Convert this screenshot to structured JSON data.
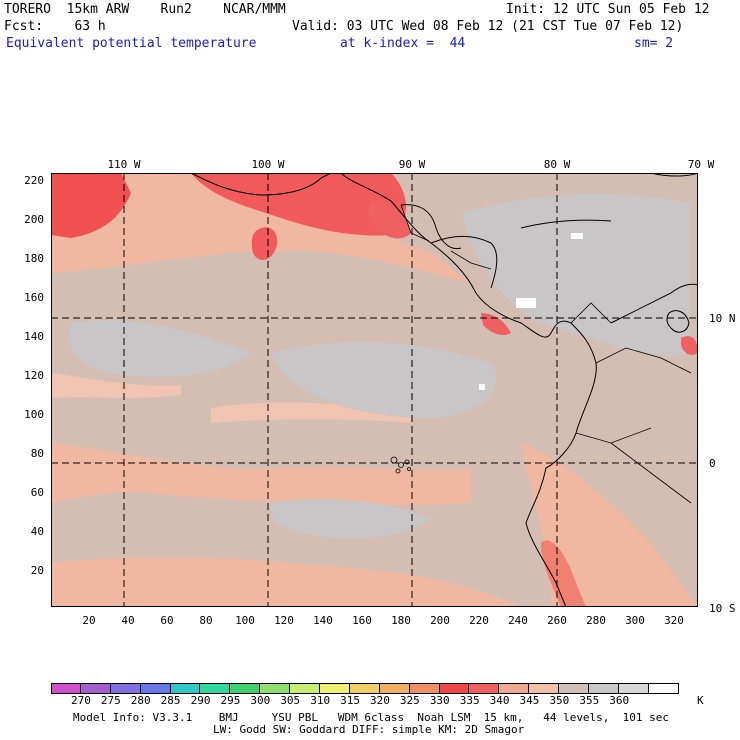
{
  "header": {
    "model": "TORERO  15km ARW    Run2    NCAR/MMM",
    "init": "Init: 12 UTC Sun 05 Feb 12",
    "fcst": "Fcst:    63 h",
    "valid": "Valid: 03 UTC Wed 08 Feb 12 (21 CST Tue 07 Feb 12)",
    "field": "Equivalent potential temperature",
    "level": "at k-index =  44",
    "smooth": "sm= 2"
  },
  "top_axis": [
    "110 W",
    "100 W",
    "90 W",
    "80 W",
    "70 W"
  ],
  "right_axis": [
    "10 N",
    "0",
    "10 S"
  ],
  "left_axis": [
    "220",
    "200",
    "180",
    "160",
    "140",
    "120",
    "100",
    "80",
    "60",
    "40",
    "20"
  ],
  "bottom_axis": [
    "20",
    "40",
    "60",
    "80",
    "100",
    "120",
    "140",
    "160",
    "180",
    "200",
    "220",
    "240",
    "260",
    "280",
    "300",
    "320"
  ],
  "colorbar": {
    "labels": [
      "270",
      "275",
      "280",
      "285",
      "290",
      "295",
      "300",
      "305",
      "310",
      "315",
      "320",
      "325",
      "330",
      "335",
      "340",
      "345",
      "350",
      "355",
      "360"
    ],
    "unit": "K",
    "colors": [
      "#d050d0",
      "#a060d0",
      "#8070e0",
      "#6878e8",
      "#30c8c8",
      "#30d8a0",
      "#40d070",
      "#90e070",
      "#c8ee70",
      "#f0f070",
      "#f0d060",
      "#f0b060",
      "#f09060",
      "#f04848",
      "#f06060",
      "#f0a890",
      "#f0c0a8",
      "#d0c0b8",
      "#c8c8c8",
      "#d8d8d8",
      "#ffffff"
    ]
  },
  "footer": {
    "line1": "Model Info: V3.3.1    BMJ     YSU PBL   WDM 6class  Noah LSM  15 km,   44 levels,  101 sec",
    "line2": "LW: Godd SW: Goddard DIFF: simple KM: 2D Smagor"
  }
}
